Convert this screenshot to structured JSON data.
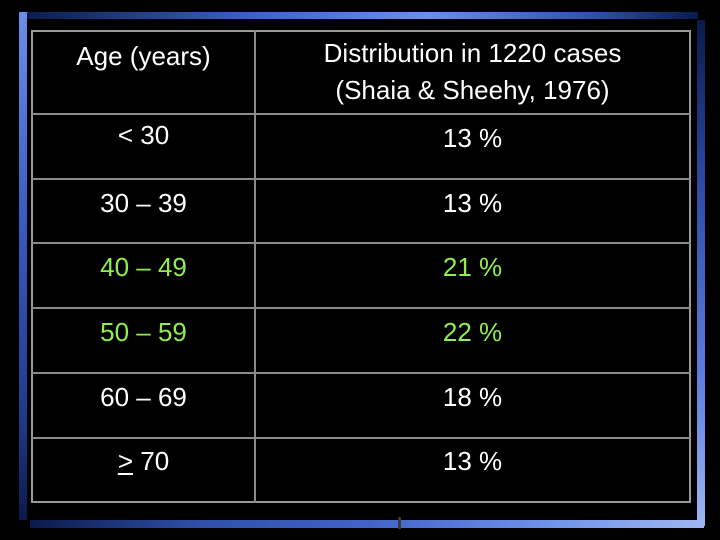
{
  "header": {
    "age_label": "Age (years)",
    "dist_line1": "Distribution in 1220 cases",
    "dist_line2": "(Shaia & Sheehy, 1976)"
  },
  "rows": [
    {
      "age": "< 30",
      "pct": "13 %",
      "color": "#ffffff"
    },
    {
      "age": "30 – 39",
      "pct": "13 %",
      "color": "#ffffff"
    },
    {
      "age": "40 – 49",
      "pct": "21 %",
      "color": "#8fef4f"
    },
    {
      "age": "50 – 59",
      "pct": "22 %",
      "color": "#8fef4f"
    },
    {
      "age": "60 – 69",
      "pct": "18 %",
      "color": "#ffffff"
    },
    {
      "age_symbol": ">",
      "age_value": " 70",
      "pct": "13 %",
      "color": "#ffffff"
    }
  ]
}
